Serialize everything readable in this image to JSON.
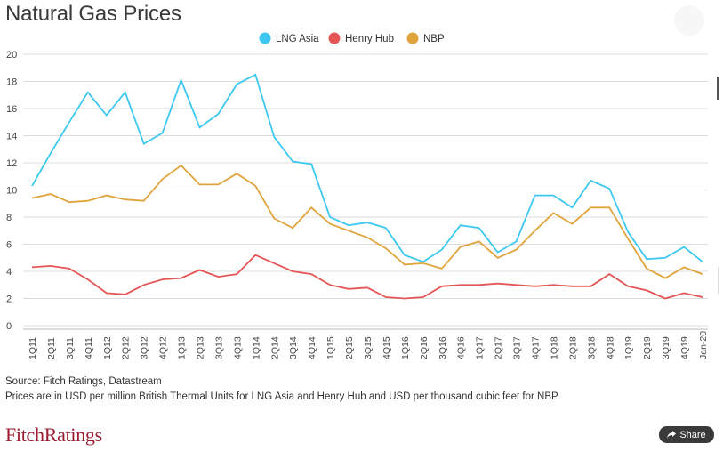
{
  "chart_data": {
    "type": "line",
    "title": "Natural Gas Prices",
    "xlabel": "",
    "ylabel": "",
    "ylim": [
      0,
      20
    ],
    "yticks": [
      0,
      2,
      4,
      6,
      8,
      10,
      12,
      14,
      16,
      18,
      20
    ],
    "grid": "horizontal",
    "legend_position": "top-center",
    "categories": [
      "1Q11",
      "2Q11",
      "3Q11",
      "4Q11",
      "1Q12",
      "2Q12",
      "3Q12",
      "4Q12",
      "1Q13",
      "2Q13",
      "3Q13",
      "4Q13",
      "1Q14",
      "2Q14",
      "3Q14",
      "4Q14",
      "1Q15",
      "2Q15",
      "3Q15",
      "4Q15",
      "1Q16",
      "2Q16",
      "3Q16",
      "4Q16",
      "1Q17",
      "2Q17",
      "3Q17",
      "4Q17",
      "1Q18",
      "2Q18",
      "3Q18",
      "4Q18",
      "1Q19",
      "2Q19",
      "3Q19",
      "4Q19",
      "Jan-20"
    ],
    "category_labels": [
      "1Q11",
      "",
      "2Q11",
      "",
      "3Q11",
      "",
      "4Q11",
      "",
      "1Q12",
      "",
      "2Q12",
      "",
      "3Q12",
      "",
      "4Q12",
      "",
      "1Q13",
      "",
      "2Q13",
      "",
      "3Q13",
      "",
      "4Q13",
      "",
      "1Q14",
      "",
      "2Q14",
      "",
      "3Q14",
      "",
      "4Q14",
      "",
      "1Q15",
      "",
      "2Q15",
      "",
      "3Q15",
      "",
      "4Q15",
      "",
      "1Q16",
      "",
      "2Q16",
      "",
      "3Q16",
      "",
      "4Q16",
      "",
      "1Q17",
      "",
      "2Q17",
      "",
      "3Q17",
      "",
      "4Q17",
      "",
      "1Q18",
      "",
      "2Q18",
      "",
      "3Q18",
      "",
      "4Q18",
      "",
      "1Q19",
      "",
      "2Q19",
      "",
      "3Q19",
      "",
      "4Q19",
      "",
      "Jan-20"
    ],
    "series": [
      {
        "name": "LNG Asia",
        "color": "#3cc8f0",
        "values": [
          10.3,
          12.7,
          15.0,
          17.2,
          15.5,
          17.2,
          13.4,
          14.2,
          18.1,
          14.6,
          15.6,
          17.8,
          18.5,
          13.9,
          12.1,
          11.9,
          8.0,
          7.4,
          7.6,
          7.2,
          5.2,
          4.7,
          5.6,
          7.4,
          7.2,
          5.4,
          6.2,
          9.6,
          9.6,
          8.7,
          10.7,
          10.1,
          6.9,
          4.9,
          5.0,
          5.8,
          4.7
        ]
      },
      {
        "name": "Henry Hub",
        "color": "#e45555",
        "values": [
          4.3,
          4.4,
          4.2,
          3.4,
          2.4,
          2.3,
          3.0,
          3.4,
          3.5,
          4.1,
          3.6,
          3.8,
          5.2,
          4.6,
          4.0,
          3.8,
          3.0,
          2.7,
          2.8,
          2.1,
          2.0,
          2.1,
          2.9,
          3.0,
          3.0,
          3.1,
          3.0,
          2.9,
          3.0,
          2.9,
          2.9,
          3.8,
          2.9,
          2.6,
          2.0,
          2.4,
          2.1
        ]
      },
      {
        "name": "NBP",
        "color": "#e0a43c",
        "values": [
          9.4,
          9.7,
          9.1,
          9.2,
          9.6,
          9.3,
          9.2,
          10.8,
          11.8,
          10.4,
          10.4,
          11.2,
          10.3,
          7.9,
          7.2,
          8.7,
          7.5,
          7.0,
          6.5,
          5.7,
          4.5,
          4.6,
          4.2,
          5.8,
          6.2,
          5.0,
          5.6,
          7.0,
          8.3,
          7.5,
          8.7,
          8.7,
          6.4,
          4.2,
          3.5,
          4.3,
          3.8
        ]
      }
    ]
  },
  "footer": {
    "source": "Source: Fitch Ratings, Datastream",
    "note": "Prices are in USD per million British Thermal Units for LNG Asia and Henry Hub and USD per thousand cubic feet for NBP",
    "logo": "FitchRatings",
    "share_label": "Share"
  }
}
